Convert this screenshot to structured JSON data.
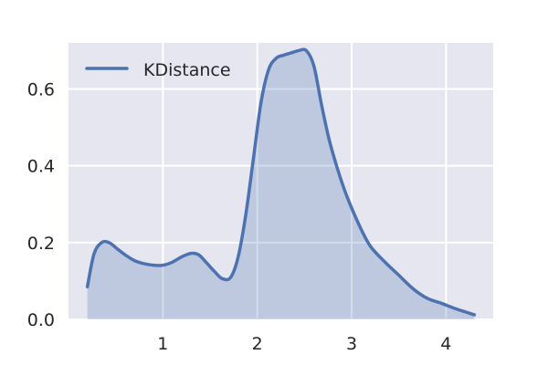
{
  "chart_data": {
    "type": "area",
    "title": "",
    "xlabel": "",
    "ylabel": "",
    "xlim": [
      0.0,
      4.5
    ],
    "ylim": [
      0.0,
      0.72
    ],
    "xticks": [
      1,
      2,
      3,
      4
    ],
    "xtick_labels": [
      "1",
      "2",
      "3",
      "4"
    ],
    "yticks": [
      0.0,
      0.2,
      0.4,
      0.6
    ],
    "ytick_labels": [
      "0.0",
      "0.2",
      "0.4",
      "0.6"
    ],
    "grid": true,
    "legend": {
      "placement": "top-left"
    },
    "colors": {
      "line": "#4c72b0",
      "fill": "#4c72b0",
      "background": "#e5e6f0",
      "grid": "#ffffff"
    },
    "series": [
      {
        "name": "KDistance",
        "x": [
          0.2,
          0.27,
          0.35,
          0.43,
          0.52,
          0.6,
          0.7,
          0.8,
          0.9,
          1.0,
          1.1,
          1.2,
          1.3,
          1.38,
          1.46,
          1.55,
          1.63,
          1.72,
          1.8,
          1.88,
          1.96,
          2.04,
          2.12,
          2.2,
          2.28,
          2.36,
          2.44,
          2.52,
          2.6,
          2.68,
          2.76,
          2.84,
          2.92,
          3.0,
          3.1,
          3.2,
          3.35,
          3.5,
          3.65,
          3.8,
          3.95,
          4.1,
          4.3
        ],
        "y": [
          0.085,
          0.17,
          0.2,
          0.2,
          0.183,
          0.168,
          0.153,
          0.145,
          0.141,
          0.141,
          0.149,
          0.163,
          0.172,
          0.168,
          0.148,
          0.124,
          0.106,
          0.11,
          0.165,
          0.275,
          0.42,
          0.565,
          0.65,
          0.68,
          0.688,
          0.694,
          0.7,
          0.7,
          0.66,
          0.56,
          0.47,
          0.4,
          0.34,
          0.29,
          0.235,
          0.19,
          0.15,
          0.115,
          0.08,
          0.055,
          0.042,
          0.028,
          0.012
        ]
      }
    ]
  }
}
